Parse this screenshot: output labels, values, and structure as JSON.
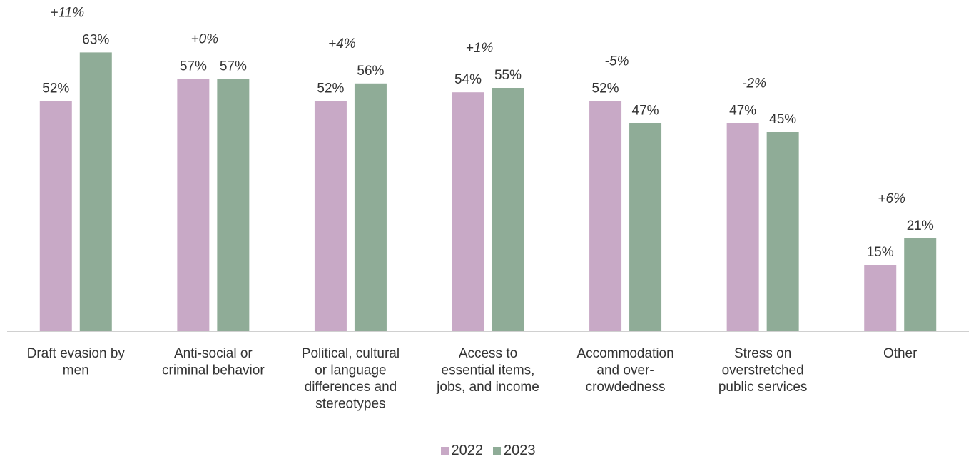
{
  "chart_data": {
    "type": "bar",
    "title": "",
    "xlabel": "",
    "ylabel": "",
    "ylim": [
      0,
      63
    ],
    "grid": false,
    "legend_position": "bottom-center",
    "categories": [
      [
        "Draft evasion by",
        "men"
      ],
      [
        "Anti-social or",
        "criminal behavior"
      ],
      [
        "Political, cultural",
        "or language",
        "differences and",
        "stereotypes"
      ],
      [
        "Access to",
        "essential items,",
        "jobs, and income"
      ],
      [
        "Accommodation",
        "and over-",
        "crowdedness"
      ],
      [
        "Stress on",
        "overstretched",
        "public services"
      ],
      [
        "Other"
      ]
    ],
    "series": [
      {
        "name": "2022",
        "color": "#c8a9c6",
        "values": [
          52,
          57,
          52,
          54,
          52,
          47,
          15
        ],
        "labels": [
          "52%",
          "57%",
          "52%",
          "54%",
          "52%",
          "47%",
          "15%"
        ]
      },
      {
        "name": "2023",
        "color": "#8fac97",
        "values": [
          63,
          57,
          56,
          55,
          47,
          45,
          21
        ],
        "labels": [
          "63%",
          "57%",
          "56%",
          "55%",
          "47%",
          "45%",
          "21%"
        ]
      }
    ],
    "changes": [
      "+11%",
      "+0%",
      "+4%",
      "+1%",
      "-5%",
      "-2%",
      "+6%"
    ]
  },
  "legend": {
    "items": [
      {
        "label": "2022",
        "color": "#c8a9c6"
      },
      {
        "label": "2023",
        "color": "#8fac97"
      }
    ]
  }
}
